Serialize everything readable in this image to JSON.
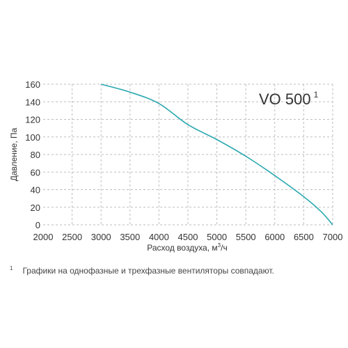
{
  "chart_data": {
    "type": "line",
    "title": "VO 500",
    "title_superscript": "1",
    "xlabel": "Расход воздуха, м",
    "xlabel_superscript": "3",
    "xlabel_suffix": "/ч",
    "ylabel": "Давление, Па",
    "xlim": [
      2000,
      7000
    ],
    "ylim": [
      0,
      160
    ],
    "x_ticks": [
      "2000",
      "2500",
      "3000",
      "3500",
      "4000",
      "4500",
      "5000",
      "5500",
      "6000",
      "6500",
      "7000"
    ],
    "y_ticks": [
      "0",
      "20",
      "40",
      "60",
      "80",
      "100",
      "120",
      "140",
      "160"
    ],
    "grid": "dashed",
    "series": [
      {
        "color": "#2aa8b0",
        "x": [
          3000,
          3500,
          4000,
          4500,
          5000,
          5500,
          6000,
          6500,
          6800,
          7000
        ],
        "y": [
          160,
          151,
          138,
          114,
          97,
          78,
          56,
          32,
          15,
          0
        ]
      }
    ]
  },
  "footnote": {
    "marker": "1",
    "text": "Графики на однофазные и трехфазные вентиляторы совпадают."
  }
}
